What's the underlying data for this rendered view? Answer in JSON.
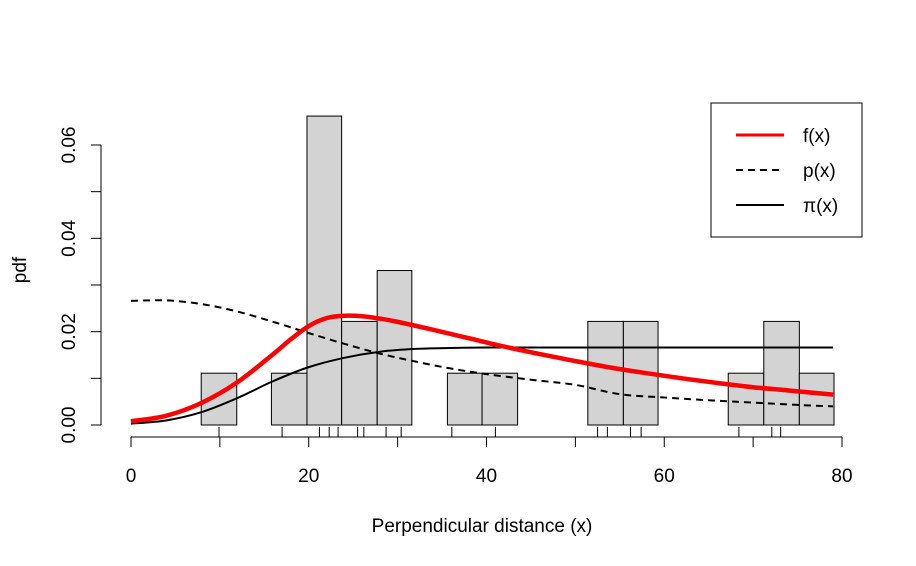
{
  "chart_data": {
    "type": "histogram",
    "xlabel": "Perpendicular distance (x)",
    "ylabel": "pdf",
    "xlim": [
      0,
      80
    ],
    "ylim": [
      0,
      0.06
    ],
    "x_ticks": [
      "0",
      "20",
      "40",
      "60",
      "80"
    ],
    "x_tick_values": [
      0,
      20,
      40,
      60,
      80
    ],
    "y_ticks": [
      "0.00",
      "0.02",
      "0.04",
      "0.06"
    ],
    "y_tick_values": [
      0,
      0.02,
      0.04,
      0.06
    ],
    "y_minor_ticks": [
      0.01,
      0.03,
      0.05
    ],
    "histogram": {
      "fill": "#d3d3d3",
      "bins": [
        {
          "x0": 7.9,
          "x1": 11.9,
          "density": 0.0111
        },
        {
          "x0": 15.8,
          "x1": 19.8,
          "density": 0.0111
        },
        {
          "x0": 19.8,
          "x1": 23.7,
          "density": 0.0662
        },
        {
          "x0": 23.7,
          "x1": 27.7,
          "density": 0.0222
        },
        {
          "x0": 27.7,
          "x1": 31.6,
          "density": 0.0331
        },
        {
          "x0": 35.6,
          "x1": 39.5,
          "density": 0.0111
        },
        {
          "x0": 39.5,
          "x1": 43.5,
          "density": 0.0111
        },
        {
          "x0": 51.4,
          "x1": 55.4,
          "density": 0.0222
        },
        {
          "x0": 55.4,
          "x1": 59.3,
          "density": 0.0222
        },
        {
          "x0": 67.2,
          "x1": 71.2,
          "density": 0.0111
        },
        {
          "x0": 71.2,
          "x1": 75.2,
          "density": 0.0222
        },
        {
          "x0": 75.2,
          "x1": 79.1,
          "density": 0.0111
        }
      ]
    },
    "rug": [
      9.9,
      17.0,
      21.2,
      22.3,
      23.3,
      25.5,
      26.2,
      28.7,
      30.4,
      36.1,
      41.0,
      52.5,
      53.6,
      56.2,
      57.4,
      68.4,
      72.1,
      73.1
    ],
    "series": [
      {
        "name": "f(x)",
        "color": "#ff0000",
        "style": "solid-thick",
        "x": [
          0,
          4,
          8,
          12,
          16,
          18,
          20,
          22,
          24,
          26,
          28,
          30,
          34,
          38,
          42,
          46,
          50,
          54,
          58,
          62,
          66,
          70,
          74,
          79
        ],
        "y": [
          0.0008,
          0.002,
          0.0048,
          0.0092,
          0.0152,
          0.0184,
          0.0212,
          0.0229,
          0.0234,
          0.0233,
          0.0228,
          0.0221,
          0.0204,
          0.0186,
          0.0168,
          0.0152,
          0.0137,
          0.0123,
          0.0111,
          0.01,
          0.009,
          0.0081,
          0.0074,
          0.0065
        ]
      },
      {
        "name": "p(x)",
        "color": "#000000",
        "style": "dashed",
        "x": [
          0,
          4,
          8,
          12,
          16,
          20,
          24,
          28,
          32,
          36,
          40,
          45,
          50,
          55,
          60,
          65,
          70,
          75,
          79
        ],
        "y": [
          0.0266,
          0.0267,
          0.0259,
          0.0243,
          0.0221,
          0.0197,
          0.0174,
          0.0153,
          0.0136,
          0.0121,
          0.0109,
          0.0097,
          0.0086,
          0.0066,
          0.0059,
          0.0053,
          0.0048,
          0.0043,
          0.004
        ]
      },
      {
        "name": "π(x)",
        "color": "#000000",
        "style": "solid",
        "x": [
          0,
          4,
          8,
          12,
          16,
          20,
          24,
          28,
          32,
          36,
          40,
          45,
          50,
          60,
          70,
          79
        ],
        "y": [
          0.0003,
          0.001,
          0.0028,
          0.0058,
          0.0094,
          0.0124,
          0.0144,
          0.0157,
          0.0163,
          0.0165,
          0.0166,
          0.0166,
          0.0166,
          0.0166,
          0.0166,
          0.0166
        ]
      }
    ],
    "legend": {
      "position": "top-right",
      "entries": [
        {
          "label": "f(x)",
          "color": "#ff0000",
          "style": "solid-thick"
        },
        {
          "label": "p(x)",
          "color": "#000000",
          "style": "dashed"
        },
        {
          "label": "π(x)",
          "color": "#000000",
          "style": "solid"
        }
      ]
    }
  }
}
